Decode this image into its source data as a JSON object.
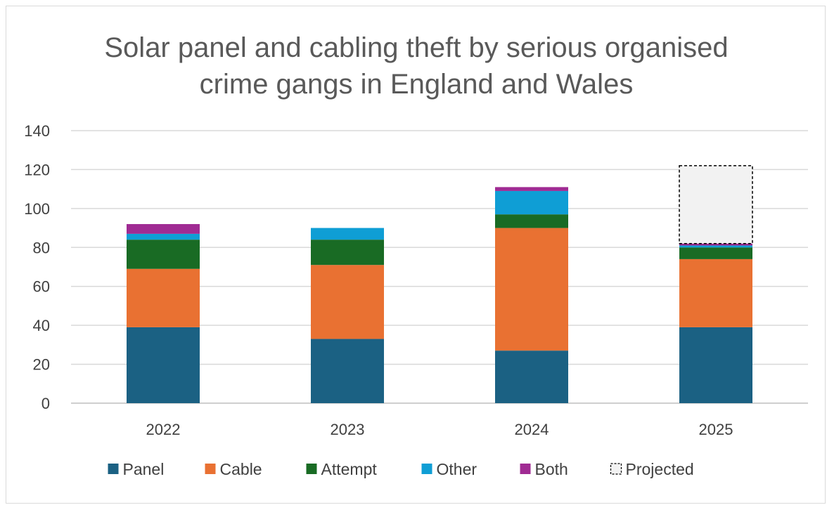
{
  "chart_data": {
    "type": "bar",
    "stacked": true,
    "title_lines": [
      "Solar panel and cabling theft by serious organised",
      "crime gangs in England and Wales"
    ],
    "categories": [
      "2022",
      "2023",
      "2024",
      "2025"
    ],
    "series": [
      {
        "name": "Panel",
        "color": "#1b6183",
        "values": [
          39,
          33,
          27,
          39
        ]
      },
      {
        "name": "Cable",
        "color": "#e97132",
        "values": [
          30,
          38,
          63,
          35
        ]
      },
      {
        "name": "Attempt",
        "color": "#196b24",
        "values": [
          15,
          13,
          7,
          6
        ]
      },
      {
        "name": "Other",
        "color": "#0f9ed5",
        "values": [
          3,
          6,
          12,
          1
        ]
      },
      {
        "name": "Both",
        "color": "#a02b93",
        "values": [
          5,
          0,
          2,
          1
        ]
      },
      {
        "name": "Projected",
        "color": "#f2f2f2",
        "border": "dashed",
        "values": [
          0,
          0,
          0,
          40
        ]
      }
    ],
    "ylim": [
      0,
      140
    ],
    "yticks": [
      "0",
      "20",
      "40",
      "60",
      "80",
      "100",
      "120",
      "140"
    ],
    "grid": true,
    "legend": "bottom"
  }
}
